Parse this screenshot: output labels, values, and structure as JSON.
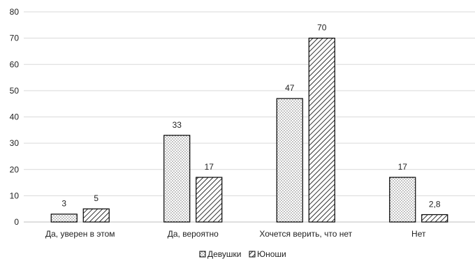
{
  "chart_data": {
    "type": "bar",
    "categories": [
      "Да, уверен в этом",
      "Да, вероятно",
      "Хочется верить, что нет",
      "Нет"
    ],
    "series": [
      {
        "name": "Девушки",
        "values": [
          3,
          33,
          47,
          17
        ],
        "labels": [
          "3",
          "33",
          "47",
          "17"
        ],
        "pattern": "dots"
      },
      {
        "name": "Юноши",
        "values": [
          5,
          17,
          70,
          2.8
        ],
        "labels": [
          "5",
          "17",
          "70",
          "2,8"
        ],
        "pattern": "diagonal"
      }
    ],
    "ylim": [
      0,
      80
    ],
    "yticks": [
      0,
      10,
      20,
      30,
      40,
      50,
      60,
      70,
      80
    ],
    "grid": true,
    "legend": "bottom-center",
    "colors": {
      "bar_stroke": "#000000",
      "bar_fill": "#ffffff",
      "grid": "#d9d9d9",
      "text": "#222222"
    }
  }
}
